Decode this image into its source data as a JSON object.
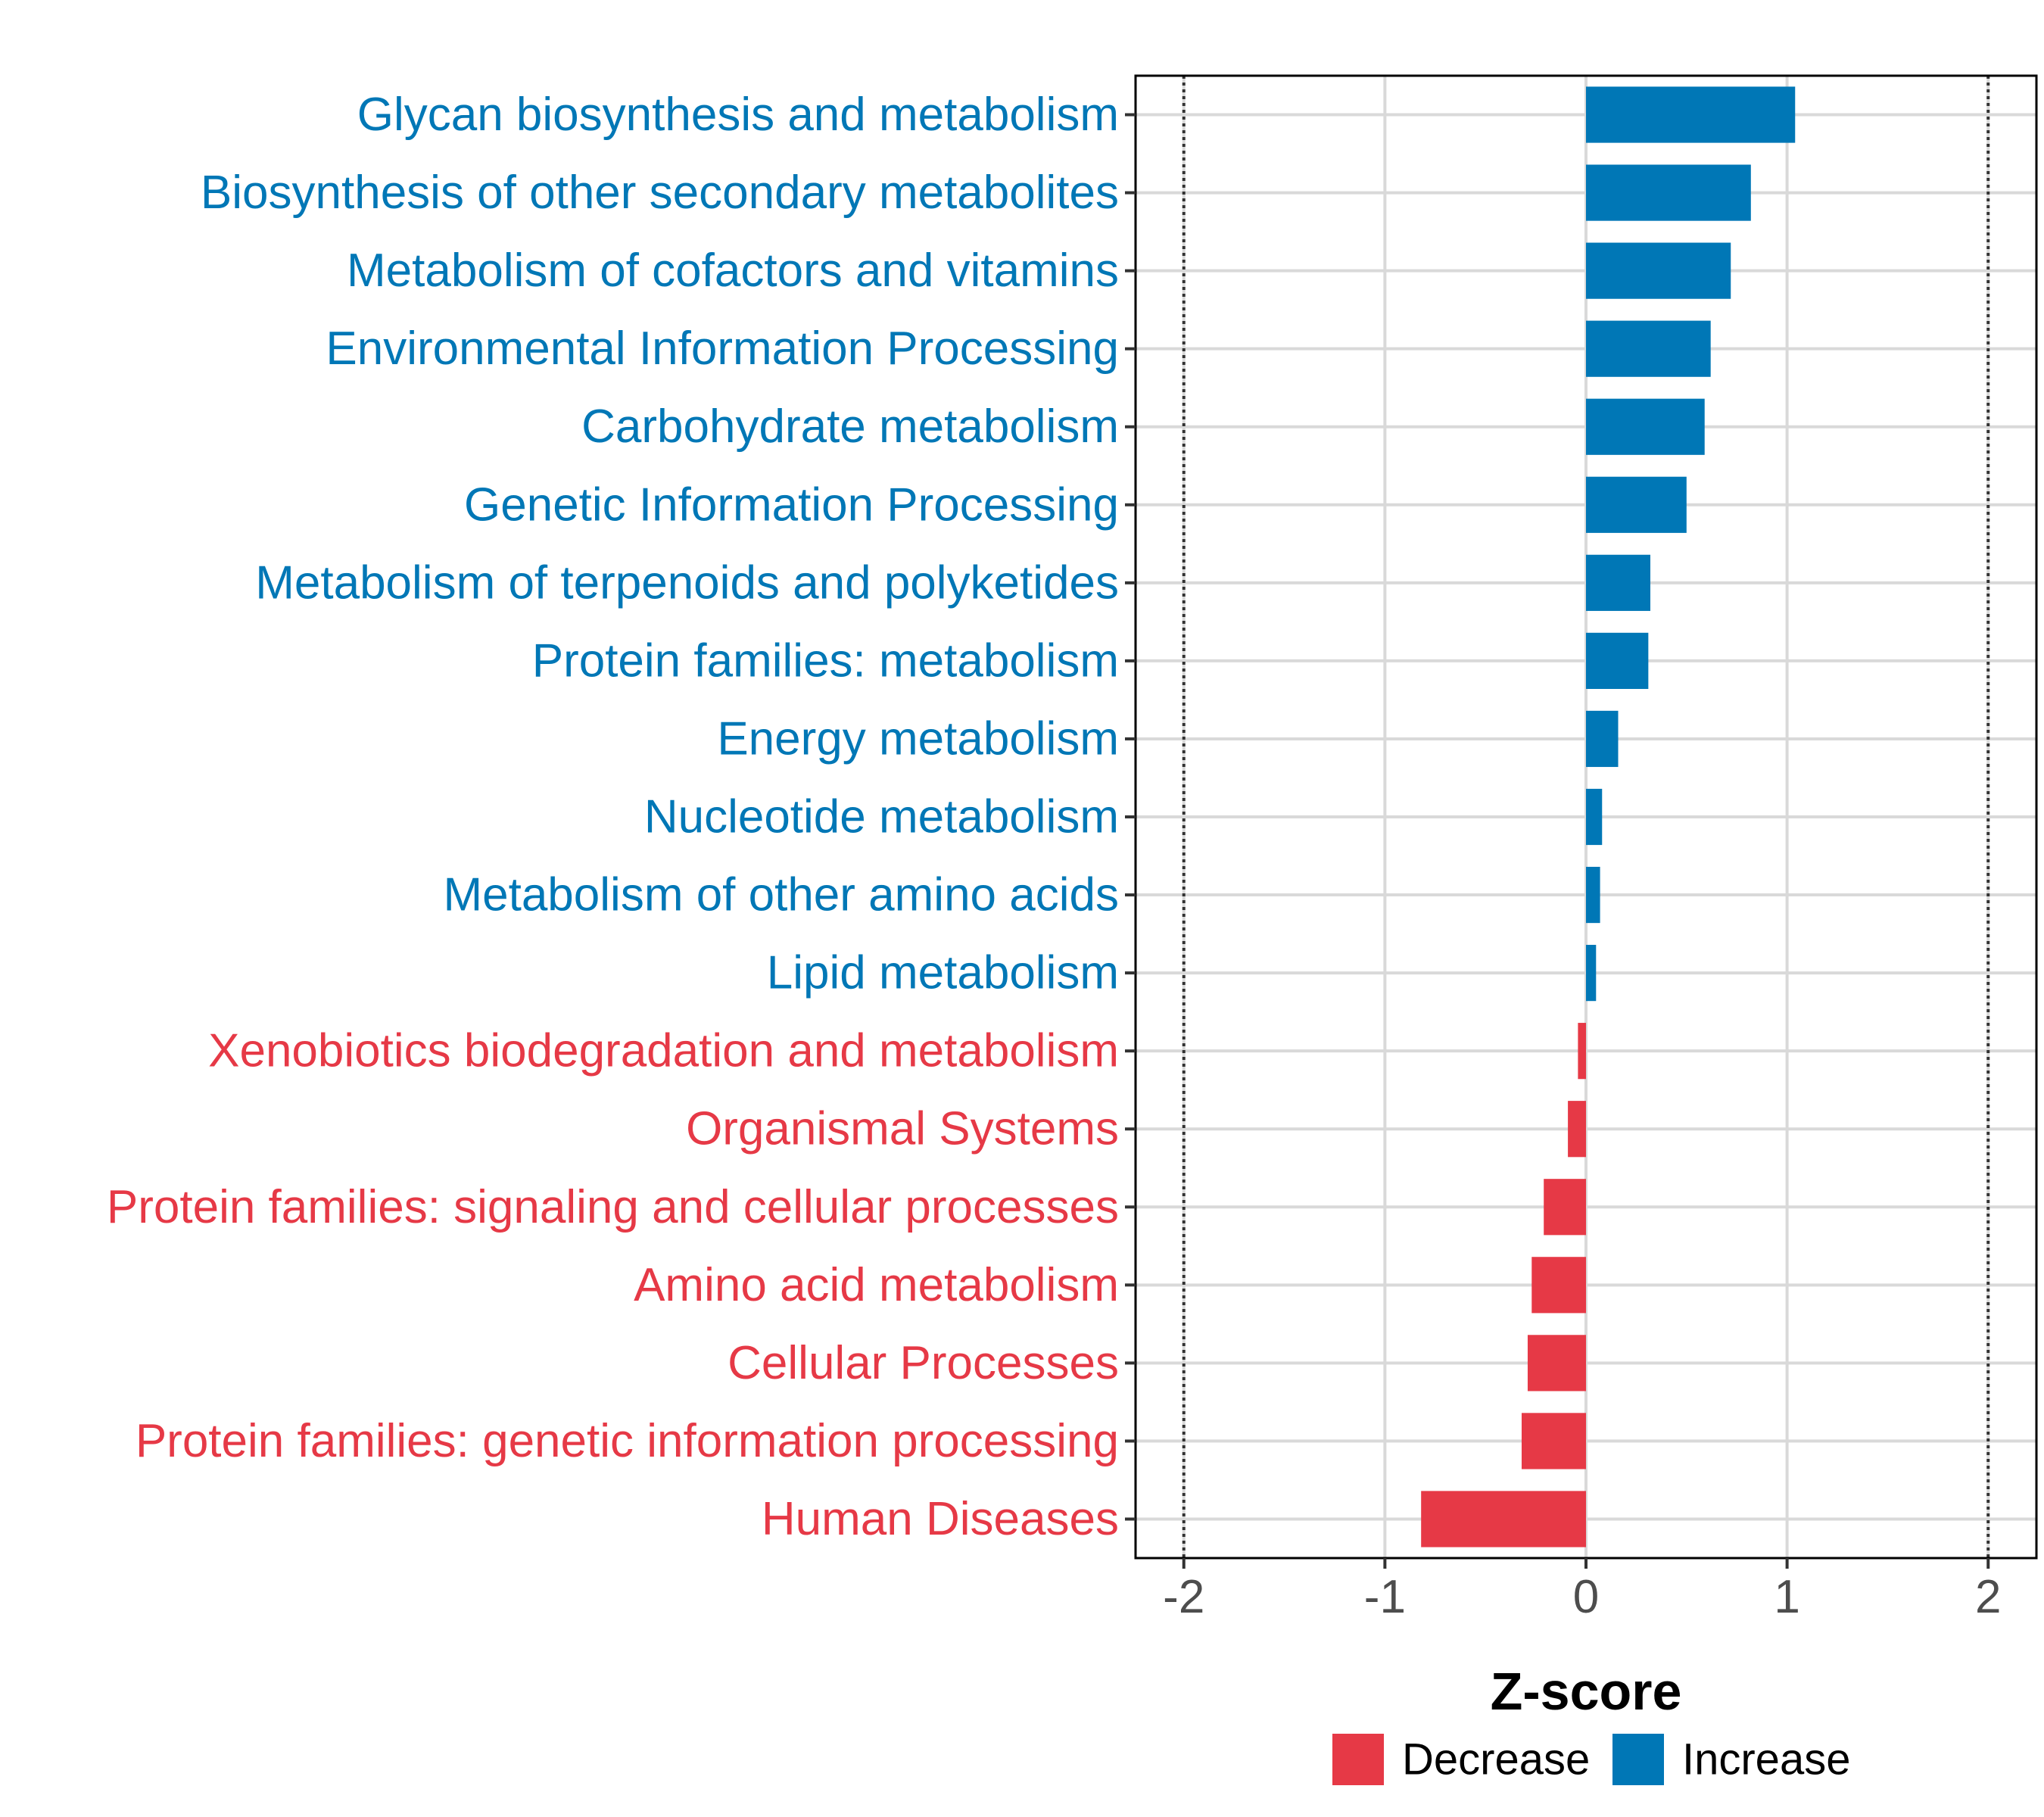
{
  "chart_data": {
    "type": "bar",
    "orientation": "horizontal",
    "title": "",
    "xlabel": "Z-score",
    "ylabel": "",
    "xlim": [
      -2.24,
      2.24
    ],
    "xticks": [
      -2,
      -1,
      0,
      1,
      2
    ],
    "xtick_labels": [
      "-2",
      "-1",
      "0",
      "1",
      "2"
    ],
    "reference_lines": [
      -2,
      2
    ],
    "grid": true,
    "legend_position": "bottom",
    "colors": {
      "Decrease": "#E63946",
      "Increase": "#0077B6"
    },
    "legend": [
      {
        "label": "Decrease",
        "color": "#E63946"
      },
      {
        "label": "Increase",
        "color": "#0077B6"
      }
    ],
    "categories": [
      "Glycan biosynthesis and metabolism",
      "Biosynthesis of other secondary metabolites",
      "Metabolism of cofactors and vitamins",
      "Environmental Information Processing",
      "Carbohydrate metabolism",
      "Genetic Information Processing",
      "Metabolism of terpenoids and polyketides",
      "Protein families: metabolism",
      "Energy metabolism",
      "Nucleotide metabolism",
      "Metabolism of other amino acids",
      "Lipid metabolism",
      "Xenobiotics biodegradation and metabolism",
      "Organismal Systems",
      "Protein families: signaling and cellular processes",
      "Amino acid metabolism",
      "Cellular Processes",
      "Protein families: genetic information processing",
      "Human Diseases"
    ],
    "values": [
      1.04,
      0.82,
      0.72,
      0.62,
      0.59,
      0.5,
      0.32,
      0.31,
      0.16,
      0.08,
      0.07,
      0.05,
      -0.04,
      -0.09,
      -0.21,
      -0.27,
      -0.29,
      -0.32,
      -0.82
    ],
    "groups": [
      "Increase",
      "Increase",
      "Increase",
      "Increase",
      "Increase",
      "Increase",
      "Increase",
      "Increase",
      "Increase",
      "Increase",
      "Increase",
      "Increase",
      "Decrease",
      "Decrease",
      "Decrease",
      "Decrease",
      "Decrease",
      "Decrease",
      "Decrease"
    ]
  }
}
